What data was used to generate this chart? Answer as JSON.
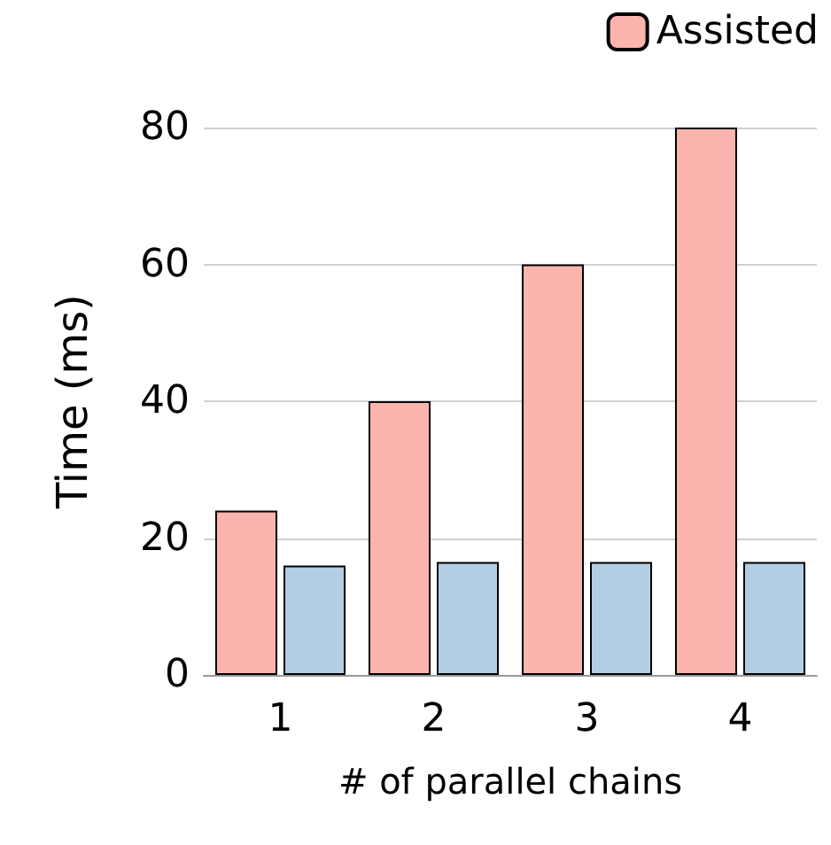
{
  "chart_data": {
    "type": "bar",
    "xlabel": "# of parallel chains",
    "ylabel": "Time (ms)",
    "categories": [
      "1",
      "2",
      "3",
      "4"
    ],
    "series": [
      {
        "name": "Assisted",
        "color": "#fbb4ae",
        "values": [
          24,
          40,
          60,
          80
        ]
      },
      {
        "color": "#b3cde3",
        "values": [
          16,
          16.5,
          16.5,
          16.5
        ]
      }
    ],
    "ylim": [
      0,
      80
    ],
    "yticks": [
      0,
      20,
      40,
      60,
      80
    ],
    "grid": "y",
    "legend": "top right"
  }
}
